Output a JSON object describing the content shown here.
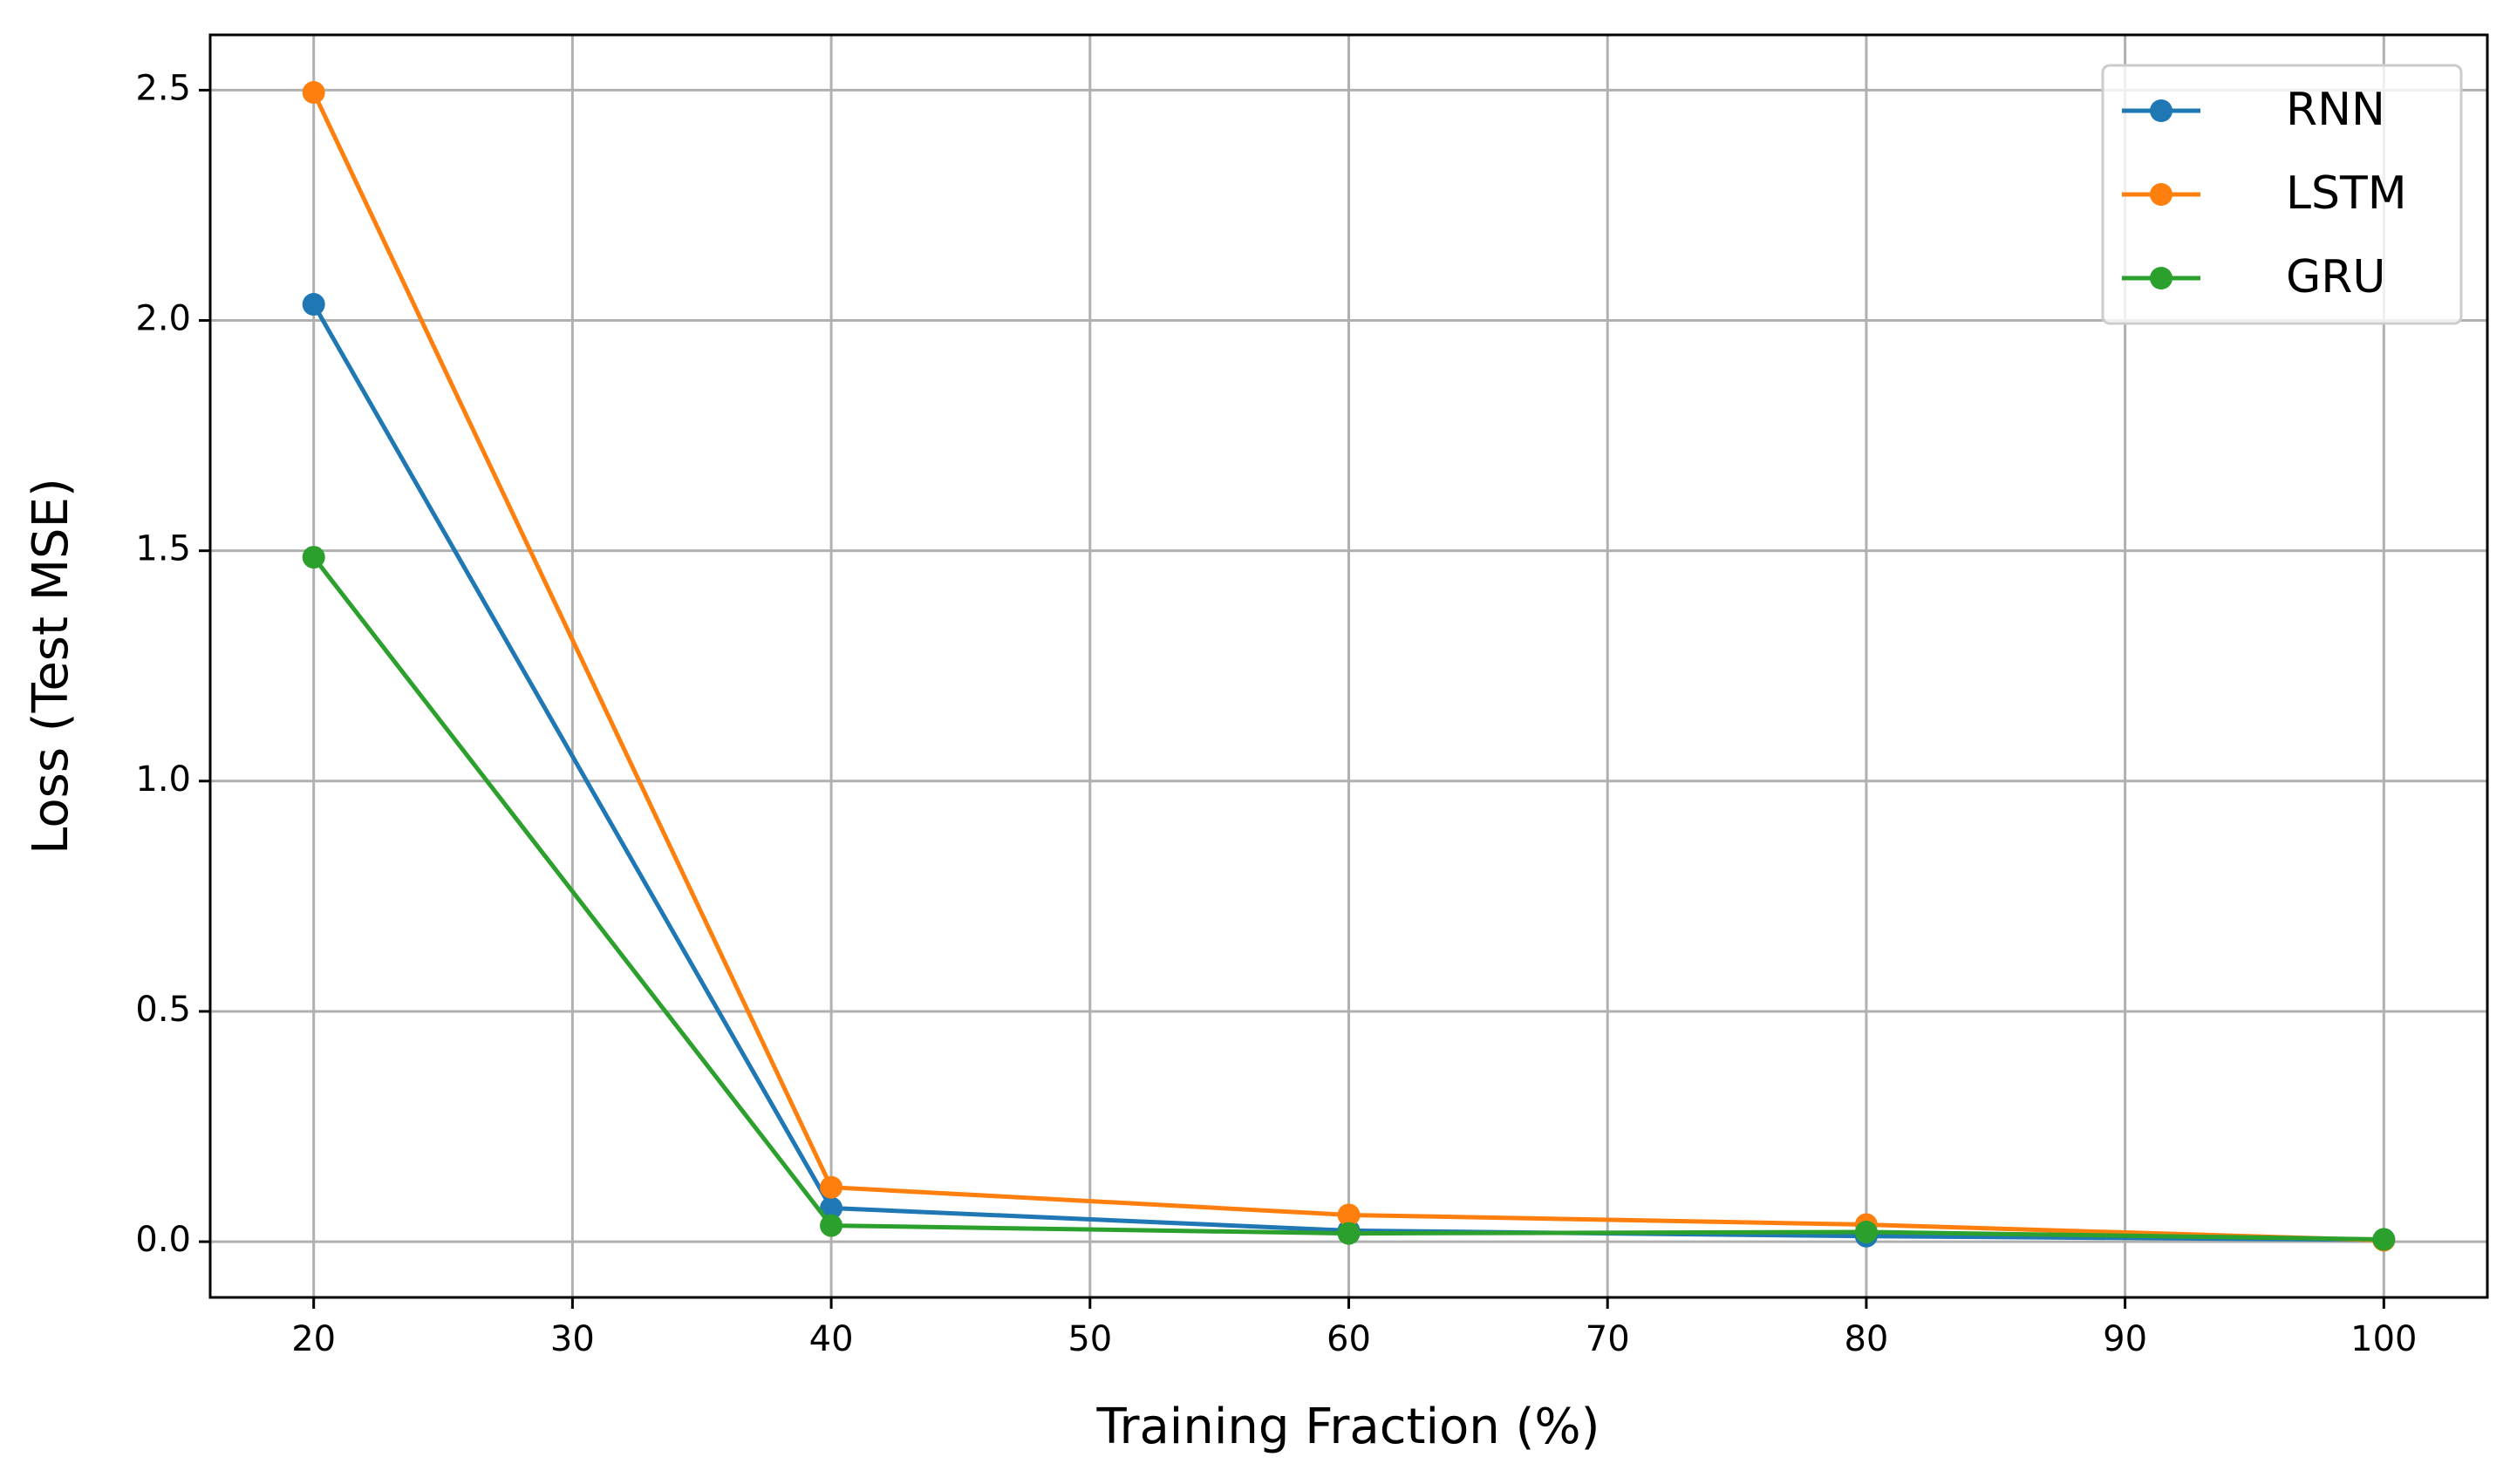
{
  "chart_data": {
    "type": "line",
    "x_label": "Training Fraction (%)",
    "y_label": "Loss (Test MSE)",
    "x": [
      20,
      40,
      60,
      80,
      100
    ],
    "series": [
      {
        "name": "RNN",
        "color": "#1f77b4",
        "values": [
          2.035,
          0.073,
          0.024,
          0.012,
          0.004
        ]
      },
      {
        "name": "LSTM",
        "color": "#ff7f0e",
        "values": [
          2.495,
          0.118,
          0.058,
          0.037,
          0.003
        ]
      },
      {
        "name": "GRU",
        "color": "#2ca02c",
        "values": [
          1.486,
          0.035,
          0.018,
          0.021,
          0.005
        ]
      }
    ],
    "xlim": [
      16,
      104
    ],
    "ylim": [
      -0.121,
      2.62
    ],
    "xticks": [
      20,
      30,
      40,
      50,
      60,
      70,
      80,
      90,
      100
    ],
    "yticks": [
      {
        "value": 0,
        "label": "0.0"
      },
      0.5,
      {
        "value": 1,
        "label": "1.0"
      },
      1.5,
      {
        "value": 2,
        "label": "2.0"
      },
      2.5
    ],
    "grid": true,
    "legend": "upper right"
  }
}
